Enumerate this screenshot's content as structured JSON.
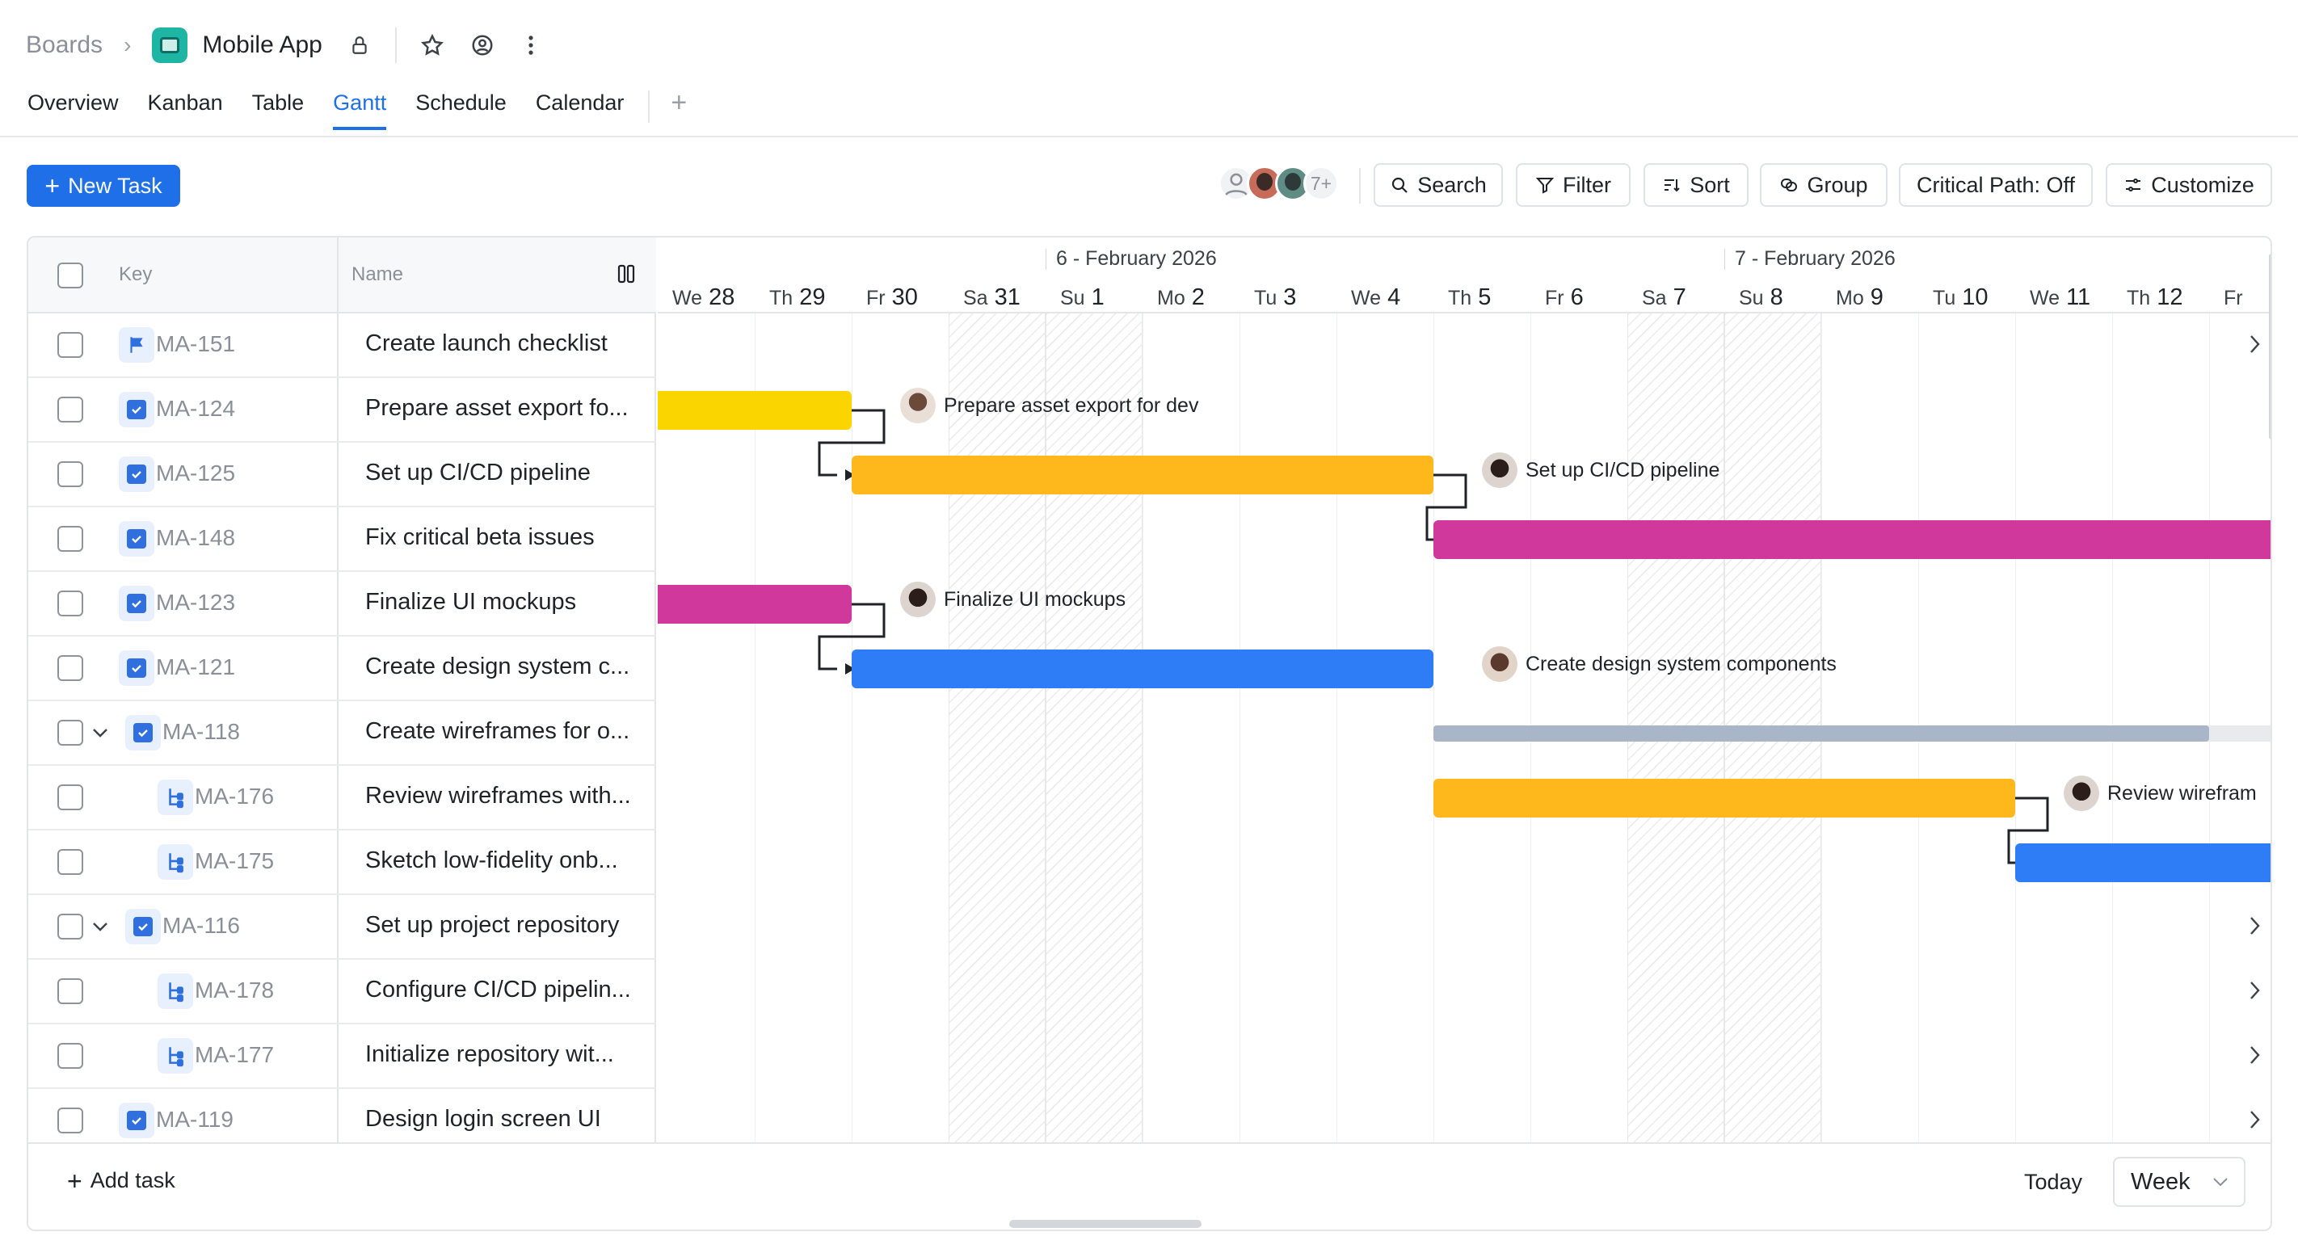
{
  "header": {
    "breadcrumb_root": "Boards",
    "board_title": "Mobile App"
  },
  "tabs": [
    {
      "label": "Overview",
      "active": false
    },
    {
      "label": "Kanban",
      "active": false
    },
    {
      "label": "Table",
      "active": false
    },
    {
      "label": "Gantt",
      "active": true
    },
    {
      "label": "Schedule",
      "active": false
    },
    {
      "label": "Calendar",
      "active": false
    }
  ],
  "toolbar": {
    "new_task": "New Task",
    "members_more": "7+",
    "search": "Search",
    "filter": "Filter",
    "sort": "Sort",
    "group": "Group",
    "critical_path": "Critical Path: Off",
    "customize": "Customize"
  },
  "grid": {
    "key_header": "Key",
    "name_header": "Name",
    "rows": [
      {
        "key": "MA-151",
        "name": "Create launch checklist",
        "type": "milestone",
        "indent": 0,
        "expandable": false,
        "more": true
      },
      {
        "key": "MA-124",
        "name": "Prepare asset export fo...",
        "type": "task",
        "indent": 0,
        "expandable": false,
        "more": false
      },
      {
        "key": "MA-125",
        "name": "Set up CI/CD pipeline",
        "type": "task",
        "indent": 0,
        "expandable": false,
        "more": false
      },
      {
        "key": "MA-148",
        "name": "Fix critical beta issues",
        "type": "task",
        "indent": 0,
        "expandable": false,
        "more": false
      },
      {
        "key": "MA-123",
        "name": "Finalize UI mockups",
        "type": "task",
        "indent": 0,
        "expandable": false,
        "more": false
      },
      {
        "key": "MA-121",
        "name": "Create design system c...",
        "type": "task",
        "indent": 0,
        "expandable": false,
        "more": false
      },
      {
        "key": "MA-118",
        "name": "Create wireframes for o...",
        "type": "task",
        "indent": 0,
        "expandable": true,
        "more": false
      },
      {
        "key": "MA-176",
        "name": "Review wireframes with...",
        "type": "subtask",
        "indent": 1,
        "expandable": false,
        "more": false
      },
      {
        "key": "MA-175",
        "name": "Sketch low-fidelity onb...",
        "type": "subtask",
        "indent": 1,
        "expandable": false,
        "more": false
      },
      {
        "key": "MA-116",
        "name": "Set up project repository",
        "type": "task",
        "indent": 0,
        "expandable": true,
        "more": true
      },
      {
        "key": "MA-178",
        "name": "Configure CI/CD pipelin...",
        "type": "subtask",
        "indent": 1,
        "expandable": false,
        "more": true
      },
      {
        "key": "MA-177",
        "name": "Initialize repository wit...",
        "type": "subtask",
        "indent": 1,
        "expandable": false,
        "more": true
      },
      {
        "key": "MA-119",
        "name": "Design login screen UI",
        "type": "task",
        "indent": 0,
        "expandable": false,
        "more": true
      }
    ]
  },
  "timeline": {
    "months": [
      "6 - February 2026",
      "7 - February 2026"
    ],
    "days": [
      {
        "dow": "We",
        "num": "28",
        "weekend": false
      },
      {
        "dow": "Th",
        "num": "29",
        "weekend": false
      },
      {
        "dow": "Fr",
        "num": "30",
        "weekend": false
      },
      {
        "dow": "Sa",
        "num": "31",
        "weekend": true
      },
      {
        "dow": "Su",
        "num": "1",
        "weekend": true
      },
      {
        "dow": "Mo",
        "num": "2",
        "weekend": false
      },
      {
        "dow": "Tu",
        "num": "3",
        "weekend": false
      },
      {
        "dow": "We",
        "num": "4",
        "weekend": false
      },
      {
        "dow": "Th",
        "num": "5",
        "weekend": false
      },
      {
        "dow": "Fr",
        "num": "6",
        "weekend": false
      },
      {
        "dow": "Sa",
        "num": "7",
        "weekend": true
      },
      {
        "dow": "Su",
        "num": "8",
        "weekend": true
      },
      {
        "dow": "Mo",
        "num": "9",
        "weekend": false
      },
      {
        "dow": "Tu",
        "num": "10",
        "weekend": false
      },
      {
        "dow": "We",
        "num": "11",
        "weekend": false
      },
      {
        "dow": "Th",
        "num": "12",
        "weekend": false
      },
      {
        "dow": "Fr",
        "num": "",
        "weekend": false
      }
    ],
    "bar_labels": {
      "ma124": "Prepare asset export for dev",
      "ma125": "Set up CI/CD pipeline",
      "ma123": "Finalize UI mockups",
      "ma121": "Create design system components",
      "ma176": "Review wirefram"
    },
    "colors": {
      "yellow": "#fbd500",
      "amber": "#ffb81c",
      "magenta": "#d0399b",
      "blue": "#2e7cf6",
      "summary": "#a8b6c8"
    }
  },
  "footer": {
    "add_task": "Add task",
    "today": "Today",
    "scale": "Week"
  }
}
